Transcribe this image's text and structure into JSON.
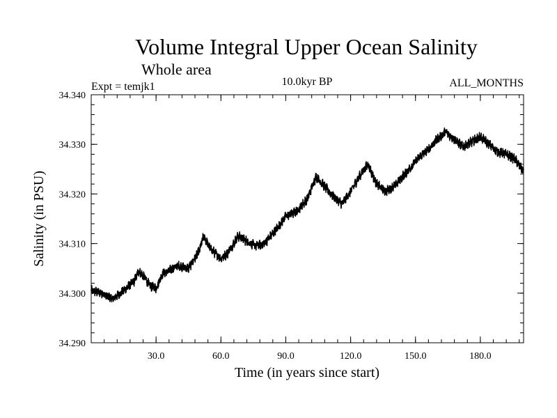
{
  "chart_data": {
    "type": "line",
    "title": "Volume Integral Upper Ocean Salinity",
    "subtitle": "Whole area",
    "left_note": "Expt = temjk1",
    "center_note": "10.0kyr BP",
    "right_note": "ALL_MONTHS",
    "xlabel": "Time (in years since start)",
    "ylabel": "Salinity (in PSU)",
    "xlim": [
      0,
      200
    ],
    "ylim": [
      34.29,
      34.34
    ],
    "x_ticks": [
      30,
      60,
      90,
      120,
      150,
      180
    ],
    "x_tick_labels": [
      "30.0",
      "60.0",
      "90.0",
      "120.0",
      "150.0",
      "180.0"
    ],
    "y_ticks": [
      34.29,
      34.3,
      34.31,
      34.32,
      34.33,
      34.34
    ],
    "y_tick_labels": [
      "34.290",
      "34.300",
      "34.310",
      "34.320",
      "34.330",
      "34.340"
    ],
    "noise_amplitude": 0.0008,
    "series": [
      {
        "name": "Salinity",
        "color": "#000000",
        "x": [
          0,
          5,
          10,
          15,
          20,
          22,
          25,
          27,
          30,
          33,
          36,
          40,
          45,
          50,
          52,
          55,
          60,
          63,
          68,
          72,
          76,
          80,
          85,
          90,
          95,
          100,
          104,
          108,
          112,
          116,
          120,
          124,
          128,
          132,
          136,
          140,
          144,
          148,
          152,
          156,
          160,
          164,
          168,
          172,
          176,
          180,
          184,
          188,
          192,
          196,
          200
        ],
        "values": [
          34.3005,
          34.3,
          34.2988,
          34.3005,
          34.3025,
          34.3045,
          34.303,
          34.3015,
          34.301,
          34.304,
          34.3045,
          34.3055,
          34.305,
          34.3085,
          34.3115,
          34.309,
          34.307,
          34.308,
          34.3115,
          34.3105,
          34.3095,
          34.31,
          34.3125,
          34.3155,
          34.3165,
          34.319,
          34.3235,
          34.3215,
          34.3195,
          34.318,
          34.3205,
          34.3235,
          34.326,
          34.322,
          34.3205,
          34.3215,
          34.3235,
          34.3255,
          34.3275,
          34.329,
          34.331,
          34.3325,
          34.331,
          34.3295,
          34.3305,
          34.3315,
          34.33,
          34.3285,
          34.328,
          34.327,
          34.3245
        ]
      }
    ]
  }
}
